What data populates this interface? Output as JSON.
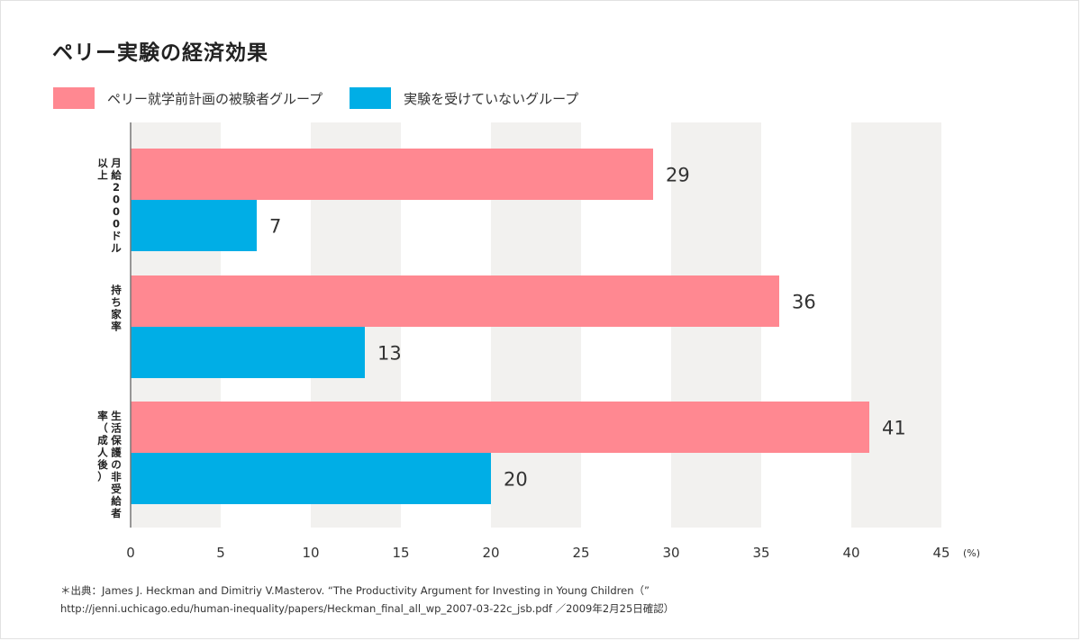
{
  "title": "ペリー実験の経済効果",
  "legend": [
    {
      "label": "ペリー就学前計画の被験者グループ",
      "color": "#ff8891"
    },
    {
      "label": "実験を受けていないグループ",
      "color": "#00aee6"
    }
  ],
  "chart_data": {
    "type": "bar",
    "orientation": "horizontal",
    "categories": [
      "月給2000ドル以上",
      "持ち家率",
      "生活保護の非受給者率（成人後）"
    ],
    "series": [
      {
        "name": "ペリー就学前計画の被験者グループ",
        "color": "#ff8891",
        "values": [
          29,
          36,
          41
        ]
      },
      {
        "name": "実験を受けていないグループ",
        "color": "#00aee6",
        "values": [
          7,
          13,
          20
        ]
      }
    ],
    "xlim": [
      0,
      45
    ],
    "xticks": [
      0,
      5,
      10,
      15,
      20,
      25,
      30,
      35,
      40,
      45
    ],
    "unit": "(%)",
    "band_color": "#f2f1ef",
    "legend_position": "top-left"
  },
  "footnote": {
    "line1": "＊出典：James J. Heckman and Dimitriy V.Masterov. “The Productivity Argument for Investing in Young Children（”",
    "line2": "http://jenni.uchicago.edu/human-inequality/papers/Heckman_final_all_wp_2007-03-22c_jsb.pdf ／2009年2月25日確認）"
  }
}
